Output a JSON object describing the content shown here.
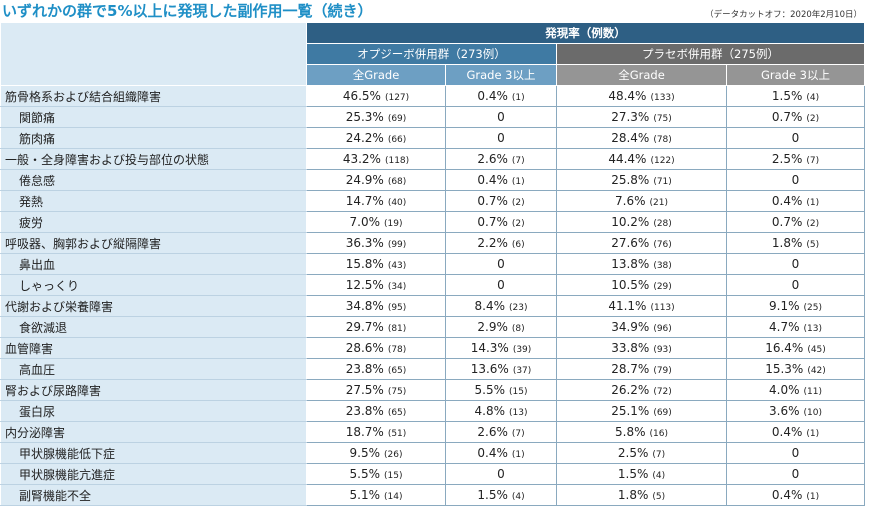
{
  "title": "いずれかの群で5%以上に発現した副作用一覧（続き）",
  "data_cutoff": "（データカットオフ：2020年2月10日）",
  "header": {
    "incidence_label": "発現率（例数）",
    "group1": "オプジーボ併用群（273例）",
    "group2": "プラセボ併用群（275例）",
    "all_grade": "全Grade",
    "grade3": "Grade 3以上"
  },
  "rows": [
    {
      "name": "筋骨格系および結合組織障害",
      "type": "cat",
      "o_all": "46.5%",
      "o_all_n": "(127)",
      "o_g3": "0.4%",
      "o_g3_n": "(1)",
      "p_all": "48.4%",
      "p_all_n": "(133)",
      "p_g3": "1.5%",
      "p_g3_n": "(4)"
    },
    {
      "name": "関節痛",
      "type": "sub",
      "o_all": "25.3%",
      "o_all_n": "(69)",
      "o_g3": "0",
      "o_g3_n": "",
      "p_all": "27.3%",
      "p_all_n": "(75)",
      "p_g3": "0.7%",
      "p_g3_n": "(2)"
    },
    {
      "name": "筋肉痛",
      "type": "sub",
      "o_all": "24.2%",
      "o_all_n": "(66)",
      "o_g3": "0",
      "o_g3_n": "",
      "p_all": "28.4%",
      "p_all_n": "(78)",
      "p_g3": "0",
      "p_g3_n": ""
    },
    {
      "name": "一般・全身障害および投与部位の状態",
      "type": "cat",
      "o_all": "43.2%",
      "o_all_n": "(118)",
      "o_g3": "2.6%",
      "o_g3_n": "(7)",
      "p_all": "44.4%",
      "p_all_n": "(122)",
      "p_g3": "2.5%",
      "p_g3_n": "(7)"
    },
    {
      "name": "倦怠感",
      "type": "sub",
      "o_all": "24.9%",
      "o_all_n": "(68)",
      "o_g3": "0.4%",
      "o_g3_n": "(1)",
      "p_all": "25.8%",
      "p_all_n": "(71)",
      "p_g3": "0",
      "p_g3_n": ""
    },
    {
      "name": "発熱",
      "type": "sub",
      "o_all": "14.7%",
      "o_all_n": "(40)",
      "o_g3": "0.7%",
      "o_g3_n": "(2)",
      "p_all": "7.6%",
      "p_all_n": "(21)",
      "p_g3": "0.4%",
      "p_g3_n": "(1)"
    },
    {
      "name": "疲労",
      "type": "sub",
      "o_all": "7.0%",
      "o_all_n": "(19)",
      "o_g3": "0.7%",
      "o_g3_n": "(2)",
      "p_all": "10.2%",
      "p_all_n": "(28)",
      "p_g3": "0.7%",
      "p_g3_n": "(2)"
    },
    {
      "name": "呼吸器、胸郭および縦隔障害",
      "type": "cat",
      "o_all": "36.3%",
      "o_all_n": "(99)",
      "o_g3": "2.2%",
      "o_g3_n": "(6)",
      "p_all": "27.6%",
      "p_all_n": "(76)",
      "p_g3": "1.8%",
      "p_g3_n": "(5)"
    },
    {
      "name": "鼻出血",
      "type": "sub",
      "o_all": "15.8%",
      "o_all_n": "(43)",
      "o_g3": "0",
      "o_g3_n": "",
      "p_all": "13.8%",
      "p_all_n": "(38)",
      "p_g3": "0",
      "p_g3_n": ""
    },
    {
      "name": "しゃっくり",
      "type": "sub",
      "o_all": "12.5%",
      "o_all_n": "(34)",
      "o_g3": "0",
      "o_g3_n": "",
      "p_all": "10.5%",
      "p_all_n": "(29)",
      "p_g3": "0",
      "p_g3_n": ""
    },
    {
      "name": "代謝および栄養障害",
      "type": "cat",
      "o_all": "34.8%",
      "o_all_n": "(95)",
      "o_g3": "8.4%",
      "o_g3_n": "(23)",
      "p_all": "41.1%",
      "p_all_n": "(113)",
      "p_g3": "9.1%",
      "p_g3_n": "(25)"
    },
    {
      "name": "食欲減退",
      "type": "sub",
      "o_all": "29.7%",
      "o_all_n": "(81)",
      "o_g3": "2.9%",
      "o_g3_n": "(8)",
      "p_all": "34.9%",
      "p_all_n": "(96)",
      "p_g3": "4.7%",
      "p_g3_n": "(13)"
    },
    {
      "name": "血管障害",
      "type": "cat",
      "o_all": "28.6%",
      "o_all_n": "(78)",
      "o_g3": "14.3%",
      "o_g3_n": "(39)",
      "p_all": "33.8%",
      "p_all_n": "(93)",
      "p_g3": "16.4%",
      "p_g3_n": "(45)"
    },
    {
      "name": "高血圧",
      "type": "sub",
      "o_all": "23.8%",
      "o_all_n": "(65)",
      "o_g3": "13.6%",
      "o_g3_n": "(37)",
      "p_all": "28.7%",
      "p_all_n": "(79)",
      "p_g3": "15.3%",
      "p_g3_n": "(42)"
    },
    {
      "name": "腎および尿路障害",
      "type": "cat",
      "o_all": "27.5%",
      "o_all_n": "(75)",
      "o_g3": "5.5%",
      "o_g3_n": "(15)",
      "p_all": "26.2%",
      "p_all_n": "(72)",
      "p_g3": "4.0%",
      "p_g3_n": "(11)"
    },
    {
      "name": "蛋白尿",
      "type": "sub",
      "o_all": "23.8%",
      "o_all_n": "(65)",
      "o_g3": "4.8%",
      "o_g3_n": "(13)",
      "p_all": "25.1%",
      "p_all_n": "(69)",
      "p_g3": "3.6%",
      "p_g3_n": "(10)"
    },
    {
      "name": "内分泌障害",
      "type": "cat",
      "o_all": "18.7%",
      "o_all_n": "(51)",
      "o_g3": "2.6%",
      "o_g3_n": "(7)",
      "p_all": "5.8%",
      "p_all_n": "(16)",
      "p_g3": "0.4%",
      "p_g3_n": "(1)"
    },
    {
      "name": "甲状腺機能低下症",
      "type": "sub",
      "o_all": "9.5%",
      "o_all_n": "(26)",
      "o_g3": "0.4%",
      "o_g3_n": "(1)",
      "p_all": "2.5%",
      "p_all_n": "(7)",
      "p_g3": "0",
      "p_g3_n": ""
    },
    {
      "name": "甲状腺機能亢進症",
      "type": "sub",
      "o_all": "5.5%",
      "o_all_n": "(15)",
      "o_g3": "0",
      "o_g3_n": "",
      "p_all": "1.5%",
      "p_all_n": "(4)",
      "p_g3": "0",
      "p_g3_n": ""
    },
    {
      "name": "副腎機能不全",
      "type": "sub",
      "o_all": "5.1%",
      "o_all_n": "(14)",
      "o_g3": "1.5%",
      "o_g3_n": "(4)",
      "p_all": "1.8%",
      "p_all_n": "(5)",
      "p_g3": "0.4%",
      "p_g3_n": "(1)"
    }
  ]
}
